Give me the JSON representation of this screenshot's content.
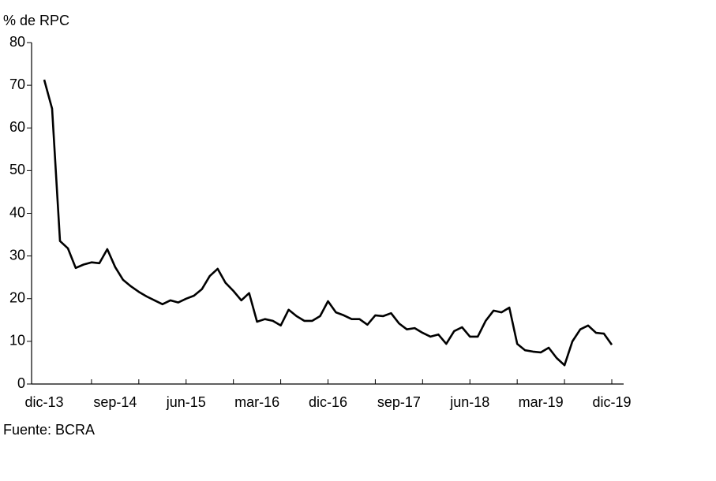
{
  "chart_data": {
    "type": "line",
    "y_label": "% de RPC",
    "source": "Fuente: BCRA",
    "categories": [
      "dic-13",
      null,
      null,
      null,
      null,
      null,
      null,
      null,
      null,
      "sep-14",
      null,
      null,
      null,
      null,
      null,
      null,
      null,
      null,
      "jun-15",
      null,
      null,
      null,
      null,
      null,
      null,
      null,
      null,
      "mar-16",
      null,
      null,
      null,
      null,
      null,
      null,
      null,
      null,
      "dic-16",
      null,
      null,
      null,
      null,
      null,
      null,
      null,
      null,
      "sep-17",
      null,
      null,
      null,
      null,
      null,
      null,
      null,
      null,
      "jun-18",
      null,
      null,
      null,
      null,
      null,
      null,
      null,
      null,
      "mar-19",
      null,
      null,
      null,
      null,
      null,
      null,
      null,
      null,
      "dic-19"
    ],
    "values": [
      71.3,
      64.5,
      33.5,
      31.8,
      27.2,
      28,
      28.5,
      28.3,
      31.6,
      27.4,
      24.4,
      22.9,
      21.6,
      20.5,
      19.6,
      18.7,
      19.6,
      19.1,
      20,
      20.7,
      22.2,
      25.3,
      27,
      23.7,
      21.8,
      19.6,
      21.3,
      14.6,
      15.2,
      14.8,
      13.7,
      17.4,
      15.9,
      14.8,
      14.8,
      15.9,
      19.4,
      16.8,
      16.1,
      15.2,
      15.2,
      13.9,
      16.1,
      15.9,
      16.6,
      14.2,
      12.8,
      13.1,
      12,
      11.1,
      11.6,
      9.4,
      12.4,
      13.3,
      11.1,
      11.1,
      14.8,
      17.2,
      16.8,
      17.9,
      9.4,
      7.9,
      7.6,
      7.4,
      8.5,
      6.1,
      4.4,
      10,
      12.8,
      13.7,
      12,
      11.8,
      9.2
    ],
    "color": "#000000",
    "ylim": [
      0,
      80
    ],
    "yticks": [
      0,
      10,
      20,
      30,
      40,
      50,
      60,
      70,
      80
    ]
  }
}
